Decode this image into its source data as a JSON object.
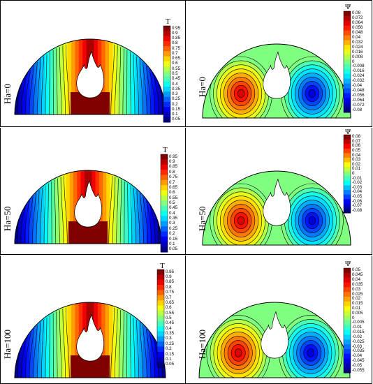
{
  "panels": [
    {
      "label": "Ha=0",
      "field": "T",
      "colorbar_title": "T",
      "kind": "temperature",
      "ticks": [
        "0.95",
        "0.9",
        "0.85",
        "0.8",
        "0.75",
        "0.7",
        "0.65",
        "0.6",
        "0.55",
        "0.5",
        "0.45",
        "0.4",
        "0.35",
        "0.3",
        "0.25",
        "0.2",
        "0.15",
        "0.1",
        "0.05"
      ]
    },
    {
      "label": "Ha=0",
      "field": "Psi",
      "colorbar_title": "Ψ",
      "kind": "stream",
      "ticks": [
        "0.08",
        "0.072",
        "0.064",
        "0.056",
        "0.048",
        "0.04",
        "0.032",
        "0.024",
        "0.016",
        "0.008",
        "0",
        "-0.008",
        "-0.016",
        "-0.024",
        "-0.032",
        "-0.04",
        "-0.048",
        "-0.056",
        "-0.064",
        "-0.072",
        "-0.08"
      ]
    },
    {
      "label": "Ha=50",
      "field": "T",
      "colorbar_title": "T",
      "kind": "temperature",
      "ticks": [
        "0.95",
        "0.9",
        "0.85",
        "0.8",
        "0.75",
        "0.7",
        "0.65",
        "0.6",
        "0.55",
        "0.5",
        "0.45",
        "0.4",
        "0.35",
        "0.3",
        "0.25",
        "0.2",
        "0.15",
        "0.1",
        "0.05"
      ]
    },
    {
      "label": "Ha=50",
      "field": "Psi",
      "colorbar_title": "Ψ",
      "kind": "stream",
      "ticks": [
        "0.08",
        "0.07",
        "0.06",
        "0.05",
        "0.04",
        "0.03",
        "0.02",
        "0.01",
        "0",
        "-0.01",
        "-0.02",
        "-0.03",
        "-0.04",
        "-0.05",
        "-0.06",
        "-0.07",
        "-0.08"
      ]
    },
    {
      "label": "Ha=100",
      "field": "T",
      "colorbar_title": "T",
      "kind": "temperature",
      "ticks": [
        "0.95",
        "0.9",
        "0.85",
        "0.8",
        "0.75",
        "0.7",
        "0.65",
        "0.6",
        "0.55",
        "0.5",
        "0.45",
        "0.4",
        "0.35",
        "0.3",
        "0.25",
        "0.2",
        "0.15",
        "0.1",
        "0.05"
      ]
    },
    {
      "label": "Ha=100",
      "field": "Psi",
      "colorbar_title": "Ψ",
      "kind": "stream",
      "ticks": [
        "0.05",
        "0.045",
        "0.04",
        "0.035",
        "0.03",
        "0.025",
        "0.02",
        "0.015",
        "0.01",
        "0.005",
        "0",
        "-0.005",
        "-0.01",
        "-0.015",
        "-0.02",
        "-0.025",
        "-0.03",
        "-0.035",
        "-0.04",
        "-0.045",
        "-0.05",
        "-0.055"
      ]
    }
  ]
}
